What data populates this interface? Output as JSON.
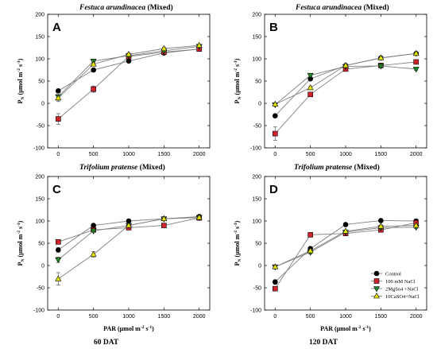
{
  "colors": {
    "Control": "#000000",
    "100 mM NaCl": "#d0242c",
    "2MgSo4 +NaCl": "#1f8a25",
    "10CaSO4+NaCl": "#e8e600",
    "axis": "#000000",
    "line": "#808080"
  },
  "chart_data": [
    {
      "type": "line",
      "panel_label": "A",
      "title": "Festuca arundinacea (Mixed)",
      "x": [
        0,
        500,
        1000,
        1500,
        2000
      ],
      "xticks": [
        "0",
        "500",
        "1000",
        "1500",
        "2000"
      ],
      "yticks": [
        "-100",
        "-50",
        "0",
        "50",
        "100",
        "150",
        "200"
      ],
      "ylim": [
        -100,
        200
      ],
      "ylabel": "PN (µmol m-2 s-1)",
      "xlabel": "",
      "grid": false,
      "series": [
        {
          "name": "Control",
          "values": [
            28,
            75,
            95,
            113,
            122
          ],
          "errors": [
            4,
            3,
            3,
            3,
            3
          ]
        },
        {
          "name": "100 mM NaCl",
          "values": [
            -35,
            32,
            105,
            115,
            122
          ],
          "errors": [
            12,
            7,
            3,
            3,
            3
          ]
        },
        {
          "name": "2MgSo4 +NaCl",
          "values": [
            15,
            95,
            107,
            118,
            128
          ],
          "errors": [
            8,
            4,
            3,
            3,
            3
          ]
        },
        {
          "name": "10CaSO4+NaCl",
          "values": [
            12,
            88,
            110,
            123,
            130
          ],
          "errors": [
            8,
            4,
            3,
            3,
            3
          ]
        }
      ]
    },
    {
      "type": "line",
      "panel_label": "B",
      "title": "Festuca arundinacea (Mixed)",
      "x": [
        0,
        500,
        1000,
        1500,
        2000
      ],
      "xticks": [
        "0",
        "500",
        "1000",
        "1500",
        "2000"
      ],
      "yticks": [
        "-100",
        "-50",
        "0",
        "50",
        "100",
        "150",
        "200"
      ],
      "ylim": [
        -100,
        200
      ],
      "ylabel": "PN (µmol m-2 s-1)",
      "xlabel": "",
      "grid": false,
      "series": [
        {
          "name": "Control",
          "values": [
            -28,
            55,
            85,
            102,
            112
          ],
          "errors": [
            3,
            3,
            3,
            3,
            3
          ]
        },
        {
          "name": "100 mM NaCl",
          "values": [
            -68,
            20,
            77,
            85,
            93
          ],
          "errors": [
            15,
            3,
            3,
            3,
            3
          ]
        },
        {
          "name": "2MgSo4 +NaCl",
          "values": [
            -3,
            63,
            83,
            84,
            77
          ],
          "errors": [
            3,
            3,
            3,
            3,
            3
          ]
        },
        {
          "name": "10CaSO4+NaCl",
          "values": [
            -2,
            35,
            85,
            102,
            112
          ],
          "errors": [
            3,
            3,
            3,
            3,
            3
          ]
        }
      ]
    },
    {
      "type": "line",
      "panel_label": "C",
      "title": "Trifolium pratense (Mixed)",
      "x": [
        0,
        500,
        1000,
        1500,
        2000
      ],
      "xticks": [
        "0",
        "500",
        "1000",
        "1500",
        "2000"
      ],
      "yticks": [
        "-100",
        "-50",
        "0",
        "50",
        "100",
        "150",
        "200"
      ],
      "ylim": [
        -100,
        200
      ],
      "ylabel": "PN (µmol m-2 s-1)",
      "xlabel": "PAR (µmol m-2 s-1)",
      "grid": false,
      "series": [
        {
          "name": "Control",
          "values": [
            35,
            90,
            100,
            105,
            110
          ],
          "errors": [
            5,
            3,
            3,
            3,
            3
          ]
        },
        {
          "name": "100 mM NaCl",
          "values": [
            53,
            80,
            85,
            90,
            107
          ],
          "errors": [
            3,
            3,
            3,
            3,
            3
          ]
        },
        {
          "name": "2MgSo4 +NaCl",
          "values": [
            13,
            78,
            90,
            105,
            108
          ],
          "errors": [
            6,
            3,
            3,
            3,
            3
          ]
        },
        {
          "name": "10CaSO4+NaCl",
          "values": [
            -30,
            25,
            90,
            105,
            108
          ],
          "errors": [
            14,
            6,
            3,
            3,
            3
          ]
        }
      ]
    },
    {
      "type": "line",
      "panel_label": "D",
      "title": "Trifolium pratense (Mixed)",
      "x": [
        0,
        500,
        1000,
        1500,
        2000
      ],
      "xticks": [
        "0",
        "500",
        "1000",
        "1500",
        "2000"
      ],
      "yticks": [
        "-100",
        "-50",
        "0",
        "50",
        "100",
        "150",
        "200"
      ],
      "ylim": [
        -100,
        200
      ],
      "ylabel": "PN (µmol m-2 s-1)",
      "xlabel": "PAR (µmol m-2 s-1)",
      "grid": false,
      "legend": "bottom-right",
      "series": [
        {
          "name": "Control",
          "values": [
            -37,
            38,
            92,
            101,
            100
          ],
          "errors": [
            5,
            3,
            3,
            3,
            3
          ]
        },
        {
          "name": "100 mM NaCl",
          "values": [
            -52,
            69,
            72,
            80,
            96
          ],
          "errors": [
            3,
            3,
            3,
            3,
            3
          ]
        },
        {
          "name": "2MgSo4 +NaCl",
          "values": [
            -3,
            30,
            75,
            85,
            86
          ],
          "errors": [
            3,
            4,
            3,
            3,
            3
          ]
        },
        {
          "name": "10CaSO4+NaCl",
          "values": [
            -3,
            33,
            77,
            88,
            90
          ],
          "errors": [
            3,
            4,
            3,
            3,
            3
          ]
        }
      ]
    }
  ],
  "legend_labels": [
    "Control",
    "100 mM NaCl",
    "2MgSo4 +NaCl",
    "10CaSO4+NaCl"
  ],
  "panel_titles": {
    "top_left": "Festuca arundinacea",
    "top_right": "Festuca arundinacea",
    "middle_left": "Trifolium pratense",
    "middle_right": "Trifolium pratense",
    "suffix": "(Mixed)"
  },
  "footer": {
    "left": "60 DAT",
    "right": "120 DAT"
  },
  "axis_text": {
    "ylabel_main": "P",
    "ylabel_sub": "N",
    "ylabel_unit": "(µmol m",
    "ylabel_exp1": "-2",
    "ylabel_mid": " s",
    "ylabel_exp2": "-1",
    "ylabel_end": ")",
    "xlabel_main": "PAR (µmol m",
    "xlabel_exp1": "-2",
    "xlabel_mid": " s",
    "xlabel_exp2": "-1",
    "xlabel_end": ")"
  }
}
